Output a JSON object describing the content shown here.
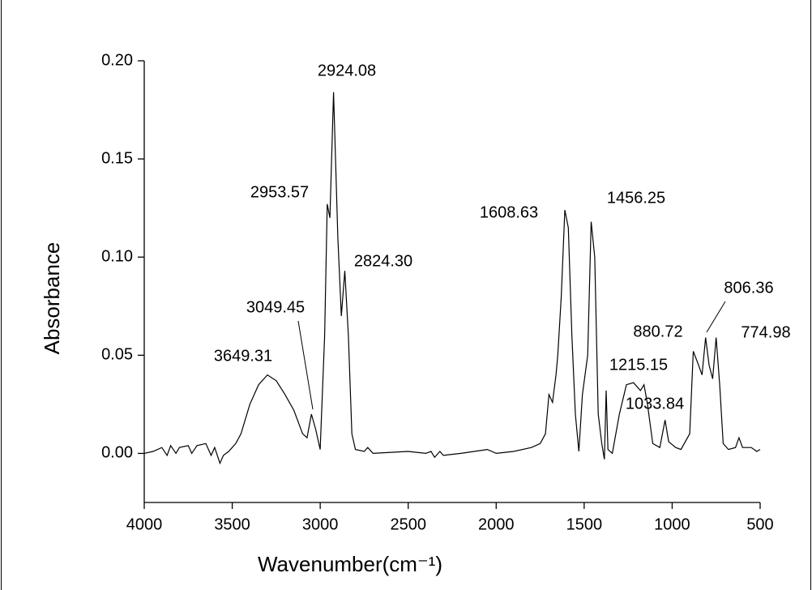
{
  "chart_data": {
    "type": "line",
    "x_label": "Wavenumber(cm⁻¹)",
    "y_label": "Absorbance",
    "color": "#000000",
    "x": [
      4000,
      3950,
      3900,
      3870,
      3850,
      3820,
      3800,
      3750,
      3730,
      3700,
      3650,
      3620,
      3600,
      3570,
      3550,
      3520,
      3480,
      3450,
      3400,
      3350,
      3300,
      3250,
      3200,
      3150,
      3100,
      3075,
      3050,
      3025,
      3000,
      2975,
      2960,
      2945,
      2924,
      2900,
      2880,
      2860,
      2840,
      2820,
      2800,
      2750,
      2730,
      2700,
      2500,
      2400,
      2370,
      2350,
      2320,
      2300,
      2200,
      2050,
      2000,
      1900,
      1800,
      1750,
      1720,
      1700,
      1680,
      1660,
      1650,
      1630,
      1610,
      1590,
      1570,
      1550,
      1530,
      1510,
      1480,
      1460,
      1440,
      1420,
      1400,
      1385,
      1375,
      1365,
      1340,
      1300,
      1260,
      1220,
      1180,
      1160,
      1140,
      1110,
      1070,
      1040,
      1020,
      980,
      950,
      900,
      880,
      850,
      830,
      810,
      790,
      770,
      750,
      730,
      710,
      680,
      640,
      620,
      600,
      550,
      520,
      500
    ],
    "values": [
      0.0,
      0.001,
      0.003,
      -0.001,
      0.004,
      0.0,
      0.003,
      0.004,
      0.0,
      0.004,
      0.005,
      -0.001,
      0.003,
      -0.005,
      -0.001,
      0.001,
      0.005,
      0.01,
      0.025,
      0.035,
      0.04,
      0.037,
      0.03,
      0.022,
      0.01,
      0.008,
      0.02,
      0.012,
      0.002,
      0.06,
      0.127,
      0.12,
      0.184,
      0.11,
      0.07,
      0.093,
      0.06,
      0.01,
      0.002,
      0.001,
      0.003,
      0.0,
      0.001,
      0.0,
      0.001,
      -0.002,
      0.001,
      -0.001,
      0.0,
      0.002,
      0.0,
      0.001,
      0.003,
      0.005,
      0.01,
      0.03,
      0.026,
      0.04,
      0.05,
      0.08,
      0.124,
      0.115,
      0.06,
      0.02,
      0.001,
      0.03,
      0.05,
      0.118,
      0.1,
      0.02,
      0.005,
      -0.003,
      0.032,
      0.002,
      0.0,
      0.02,
      0.035,
      0.036,
      0.032,
      0.035,
      0.025,
      0.005,
      0.003,
      0.017,
      0.006,
      0.003,
      0.002,
      0.01,
      0.052,
      0.045,
      0.04,
      0.059,
      0.045,
      0.038,
      0.059,
      0.035,
      0.005,
      0.002,
      0.003,
      0.008,
      0.003,
      0.003,
      0.001,
      0.002
    ],
    "xlim": [
      4000,
      500
    ],
    "xticks": [
      4000,
      3500,
      3000,
      2500,
      2000,
      1500,
      1000,
      500
    ],
    "ylim": [
      -0.025,
      0.2
    ],
    "yticks": [
      {
        "value": 0,
        "label": "0.00"
      },
      0.05,
      {
        "value": 0.1,
        "label": "0.10"
      },
      0.15,
      {
        "value": 0.2,
        "label": "0.20"
      }
    ],
    "annotations": [
      "2924.08",
      "2953.57",
      "2824.30",
      "3049.45",
      "3649.31",
      "1608.63",
      "1456.25",
      "1215.15",
      "1033.84",
      "880.72",
      "806.36",
      "774.98"
    ]
  }
}
